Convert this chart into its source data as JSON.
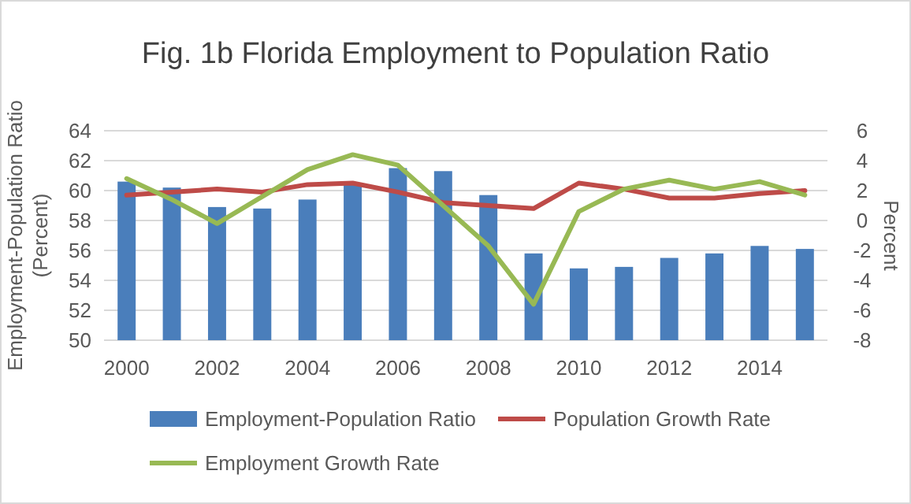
{
  "chart_data": {
    "type": "bar",
    "title": "Fig. 1b Florida Employment to Population Ratio",
    "ylabel": "Employment-Population Ratio\n(Percent)",
    "y2label": "Percent",
    "categories": [
      "2000",
      null,
      "2002",
      null,
      "2004",
      null,
      "2006",
      null,
      "2008",
      null,
      "2010",
      null,
      "2012",
      null,
      "2014",
      null
    ],
    "series": [
      {
        "name": "Employment-Population Ratio",
        "color": "#4a7ebb",
        "values": [
          60.6,
          60.2,
          58.9,
          58.8,
          59.4,
          60.4,
          61.5,
          61.3,
          59.7,
          55.8,
          54.8,
          54.9,
          55.5,
          55.8,
          56.3,
          56.1
        ]
      },
      {
        "name": "Population Growth Rate",
        "type": "line",
        "axis": "y2",
        "color": "#be4b48",
        "values": [
          1.7,
          1.9,
          2.1,
          1.9,
          2.4,
          2.5,
          1.9,
          1.2,
          1.0,
          0.8,
          2.5,
          2.1,
          1.5,
          1.5,
          1.8,
          2.0
        ]
      },
      {
        "name": "Employment Growth Rate",
        "type": "line",
        "axis": "y2",
        "color": "#98b954",
        "values": [
          2.8,
          1.4,
          -0.2,
          1.6,
          3.4,
          4.4,
          3.7,
          1.0,
          -1.7,
          -5.6,
          0.6,
          2.1,
          2.7,
          2.1,
          2.6,
          1.7
        ]
      }
    ],
    "ylim": [
      50,
      64
    ],
    "yticks": [
      50,
      52,
      54,
      56,
      58,
      60,
      62,
      64
    ],
    "y2lim": [
      -8,
      6
    ],
    "y2ticks": [
      -8,
      -6,
      -4,
      -2,
      0,
      2,
      4,
      6
    ],
    "grid": "y",
    "legend": "bottom",
    "marker": "none",
    "line_style": "solid"
  }
}
